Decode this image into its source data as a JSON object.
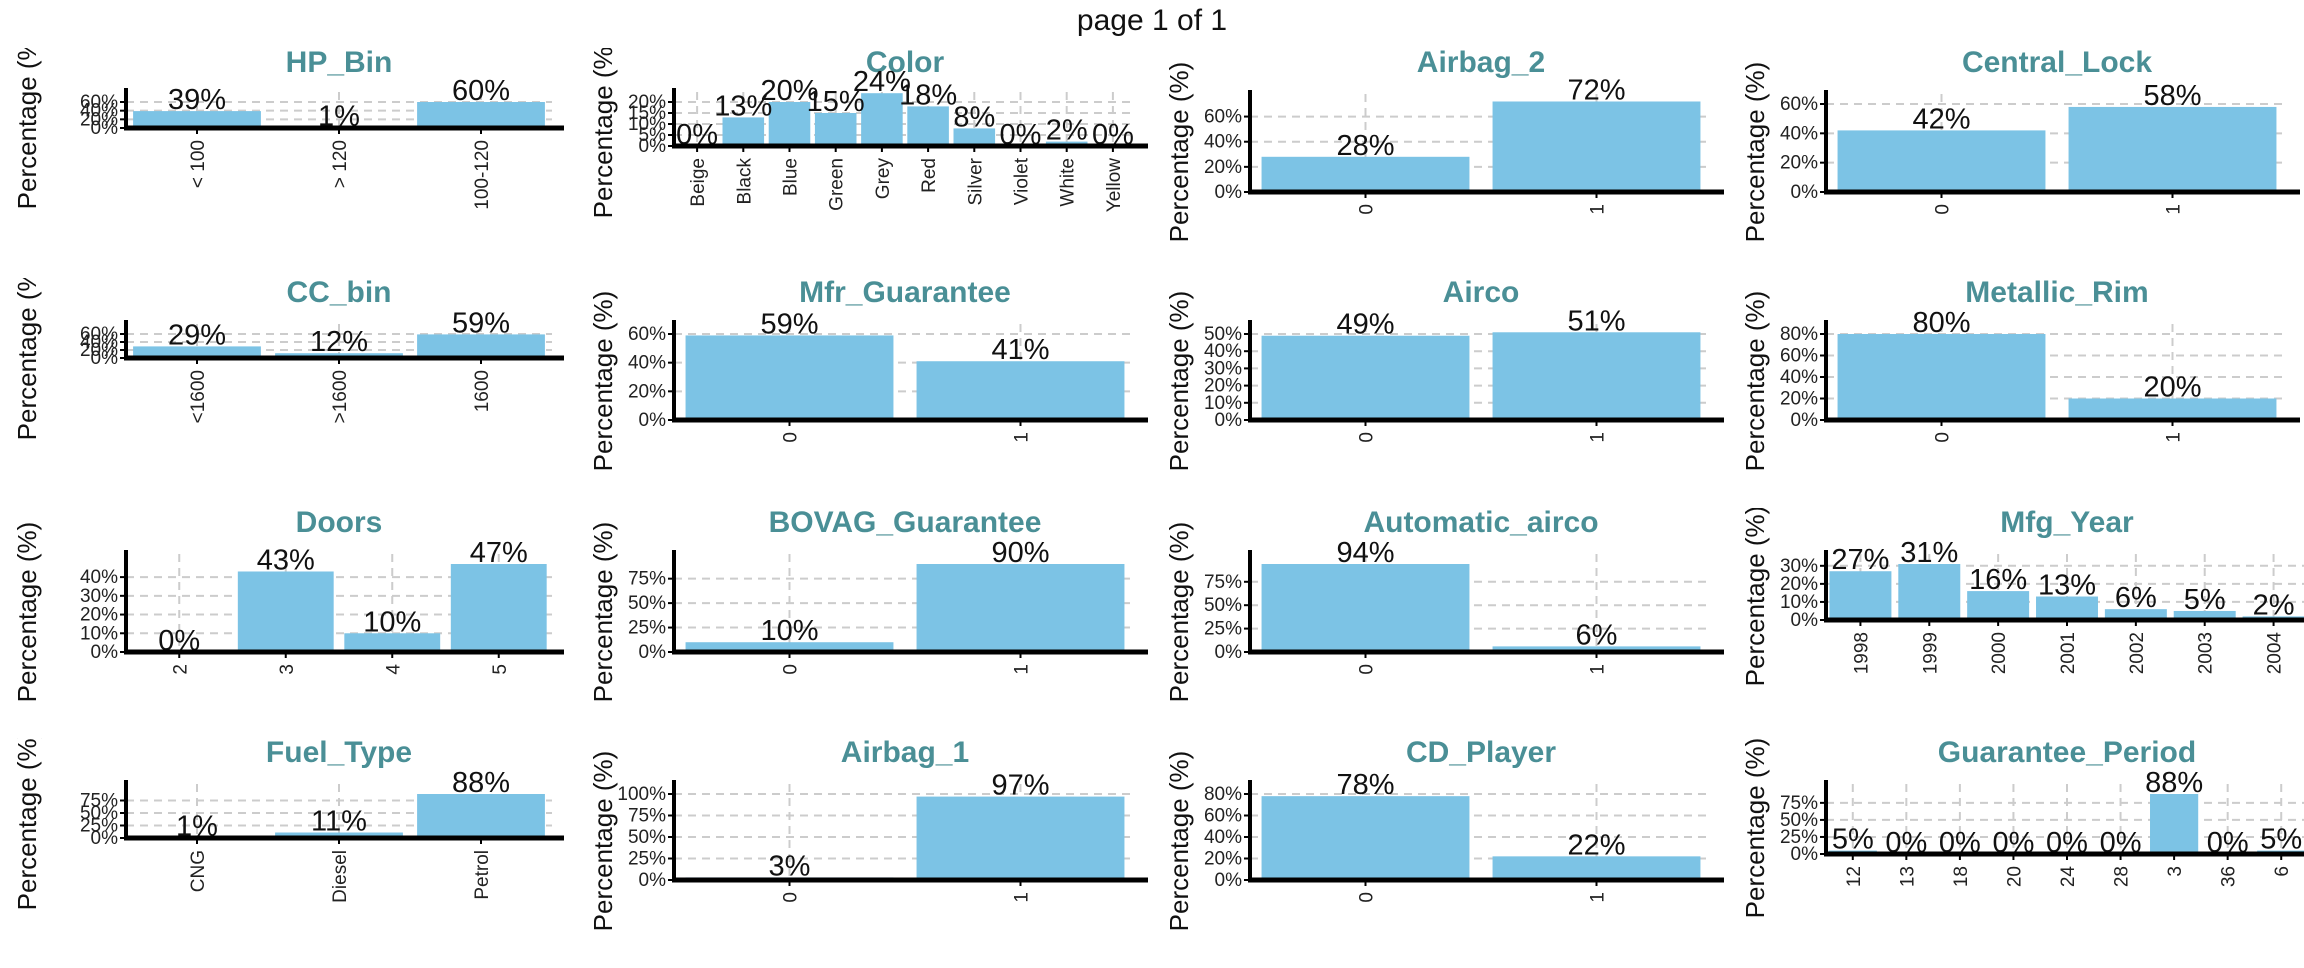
{
  "page_title": "page 1 of 1",
  "colors": {
    "bar": "#7cc3e5",
    "title": "#4a8f96",
    "grid": "#cccccc",
    "axis": "#000000"
  },
  "chart_data": [
    {
      "type": "bar",
      "title": "HP_Bin",
      "ylabel": "Percentage (%)",
      "categories": [
        "< 100",
        "> 120",
        "100-120"
      ],
      "values": [
        39,
        1,
        60
      ],
      "data_labels": [
        "39%",
        "1%",
        "60%"
      ],
      "yticks": [
        "0%",
        "20%",
        "40%",
        "60%"
      ],
      "ylim": [
        0,
        60
      ],
      "grid": true,
      "rotate_x": true
    },
    {
      "type": "bar",
      "title": "Color",
      "ylabel": "Percentage (%)",
      "categories": [
        "Beige",
        "Black",
        "Blue",
        "Green",
        "Grey",
        "Red",
        "Silver",
        "Violet",
        "White",
        "Yellow"
      ],
      "values": [
        0,
        13,
        20,
        15,
        24,
        18,
        8,
        0,
        2,
        0
      ],
      "data_labels": [
        "0%",
        "13%",
        "20%",
        "15%",
        "24%",
        "18%",
        "8%",
        "0%",
        "2%",
        "0%"
      ],
      "yticks": [
        "0%",
        "5%",
        "10%",
        "15%",
        "20%"
      ],
      "ylim": [
        0,
        20
      ],
      "grid": true,
      "rotate_x": true
    },
    {
      "type": "bar",
      "title": "Airbag_2",
      "ylabel": "Percentage (%)",
      "categories": [
        "0",
        "1"
      ],
      "values": [
        28,
        72
      ],
      "data_labels": [
        "28%",
        "72%"
      ],
      "yticks": [
        "0%",
        "20%",
        "40%",
        "60%"
      ],
      "ylim": [
        0,
        70
      ],
      "grid": true,
      "rotate_x": true
    },
    {
      "type": "bar",
      "title": "Central_Lock",
      "ylabel": "Percentage (%)",
      "categories": [
        "0",
        "1"
      ],
      "values": [
        42,
        58
      ],
      "data_labels": [
        "42%",
        "58%"
      ],
      "yticks": [
        "0%",
        "20%",
        "40%",
        "60%"
      ],
      "ylim": [
        0,
        60
      ],
      "grid": true,
      "rotate_x": true
    },
    {
      "type": "bar",
      "title": "CC_bin",
      "ylabel": "Percentage (%)",
      "categories": [
        "<1600",
        ">1600",
        "1600"
      ],
      "values": [
        29,
        12,
        59
      ],
      "data_labels": [
        "29%",
        "12%",
        "59%"
      ],
      "yticks": [
        "0%",
        "20%",
        "40%",
        "60%"
      ],
      "ylim": [
        0,
        60
      ],
      "grid": true,
      "rotate_x": true
    },
    {
      "type": "bar",
      "title": "Mfr_Guarantee",
      "ylabel": "Percentage (%)",
      "categories": [
        "0",
        "1"
      ],
      "values": [
        59,
        41
      ],
      "data_labels": [
        "59%",
        "41%"
      ],
      "yticks": [
        "0%",
        "20%",
        "40%",
        "60%"
      ],
      "ylim": [
        0,
        60
      ],
      "grid": true,
      "rotate_x": true
    },
    {
      "type": "bar",
      "title": "Airco",
      "ylabel": "Percentage (%)",
      "categories": [
        "0",
        "1"
      ],
      "values": [
        49,
        51
      ],
      "data_labels": [
        "49%",
        "51%"
      ],
      "yticks": [
        "0%",
        "10%",
        "20%",
        "30%",
        "40%",
        "50%"
      ],
      "ylim": [
        0,
        50
      ],
      "grid": true,
      "rotate_x": true
    },
    {
      "type": "bar",
      "title": "Metallic_Rim",
      "ylabel": "Percentage (%)",
      "categories": [
        "0",
        "1"
      ],
      "values": [
        80,
        20
      ],
      "data_labels": [
        "80%",
        "20%"
      ],
      "yticks": [
        "0%",
        "20%",
        "40%",
        "60%",
        "80%"
      ],
      "ylim": [
        0,
        80
      ],
      "grid": true,
      "rotate_x": true
    },
    {
      "type": "bar",
      "title": "Doors",
      "ylabel": "Percentage (%)",
      "categories": [
        "2",
        "3",
        "4",
        "5"
      ],
      "values": [
        0,
        43,
        10,
        47
      ],
      "data_labels": [
        "0%",
        "43%",
        "10%",
        "47%"
      ],
      "yticks": [
        "0%",
        "10%",
        "20%",
        "30%",
        "40%"
      ],
      "ylim": [
        0,
        47
      ],
      "grid": true,
      "rotate_x": true
    },
    {
      "type": "bar",
      "title": "BOVAG_Guarantee",
      "ylabel": "Percentage (%)",
      "categories": [
        "0",
        "1"
      ],
      "values": [
        10,
        90
      ],
      "data_labels": [
        "10%",
        "90%"
      ],
      "yticks": [
        "0%",
        "25%",
        "50%",
        "75%"
      ],
      "ylim": [
        0,
        90
      ],
      "grid": true,
      "rotate_x": true
    },
    {
      "type": "bar",
      "title": "Automatic_airco",
      "ylabel": "Percentage (%)",
      "categories": [
        "0",
        "1"
      ],
      "values": [
        94,
        6
      ],
      "data_labels": [
        "94%",
        "6%"
      ],
      "yticks": [
        "0%",
        "25%",
        "50%",
        "75%"
      ],
      "ylim": [
        0,
        94
      ],
      "grid": true,
      "rotate_x": true
    },
    {
      "type": "bar",
      "title": "Mfg_Year",
      "ylabel": "Percentage (%)",
      "categories": [
        "1998",
        "1999",
        "2000",
        "2001",
        "2002",
        "2003",
        "2004"
      ],
      "values": [
        27,
        31,
        16,
        13,
        6,
        5,
        2
      ],
      "data_labels": [
        "27%",
        "31%",
        "16%",
        "13%",
        "6%",
        "5%",
        "2%"
      ],
      "yticks": [
        "0%",
        "10%",
        "20%",
        "30%"
      ],
      "ylim": [
        0,
        31
      ],
      "grid": true,
      "rotate_x": true
    },
    {
      "type": "bar",
      "title": "Fuel_Type",
      "ylabel": "Percentage (%)",
      "categories": [
        "CNG",
        "Diesel",
        "Petrol"
      ],
      "values": [
        1,
        11,
        88
      ],
      "data_labels": [
        "1%",
        "11%",
        "88%"
      ],
      "yticks": [
        "0%",
        "25%",
        "50%",
        "75%"
      ],
      "ylim": [
        0,
        88
      ],
      "grid": true,
      "rotate_x": true
    },
    {
      "type": "bar",
      "title": "Airbag_1",
      "ylabel": "Percentage (%)",
      "categories": [
        "0",
        "1"
      ],
      "values": [
        3,
        97
      ],
      "data_labels": [
        "3%",
        "97%"
      ],
      "yticks": [
        "0%",
        "25%",
        "50%",
        "75%",
        "100%"
      ],
      "ylim": [
        0,
        100
      ],
      "grid": true,
      "rotate_x": true
    },
    {
      "type": "bar",
      "title": "CD_Player",
      "ylabel": "Percentage (%)",
      "categories": [
        "0",
        "1"
      ],
      "values": [
        78,
        22
      ],
      "data_labels": [
        "78%",
        "22%"
      ],
      "yticks": [
        "0%",
        "20%",
        "40%",
        "60%",
        "80%"
      ],
      "ylim": [
        0,
        80
      ],
      "grid": true,
      "rotate_x": true
    },
    {
      "type": "bar",
      "title": "Guarantee_Period",
      "ylabel": "Percentage (%)",
      "categories": [
        "12",
        "13",
        "18",
        "20",
        "24",
        "28",
        "3",
        "36",
        "6"
      ],
      "values": [
        5,
        0,
        0,
        0,
        0,
        0,
        88,
        0,
        5
      ],
      "data_labels": [
        "5%",
        "0%",
        "0%",
        "0%",
        "0%",
        "0%",
        "88%",
        "0%",
        "5%"
      ],
      "yticks": [
        "0%",
        "25%",
        "50%",
        "75%"
      ],
      "ylim": [
        0,
        88
      ],
      "grid": true,
      "rotate_x": true
    }
  ]
}
